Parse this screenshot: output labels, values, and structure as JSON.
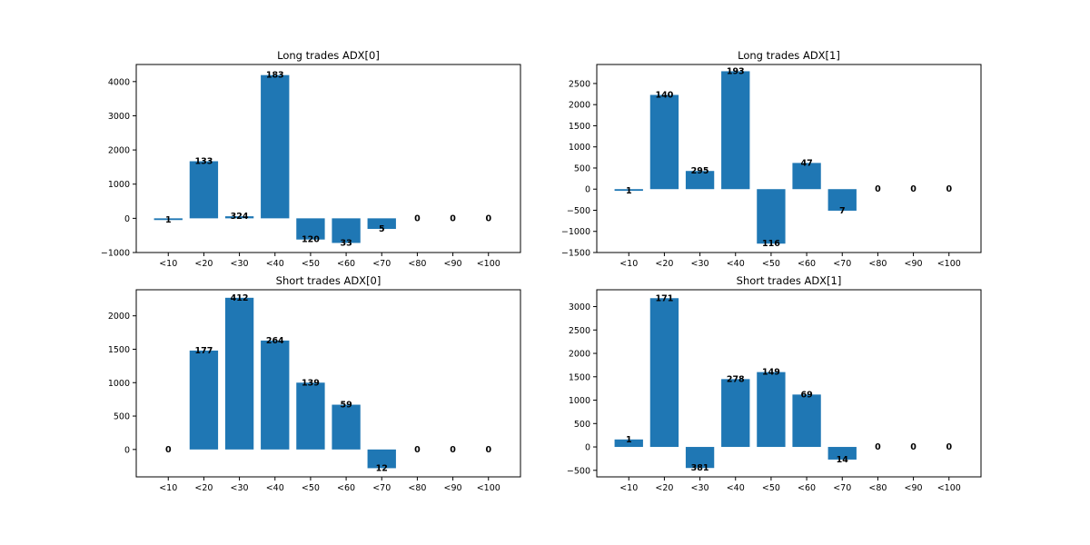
{
  "style": {
    "bar_color": "#1f77b4"
  },
  "chart_data": [
    {
      "type": "bar",
      "title": "Long trades ADX[0]",
      "categories": [
        "<10",
        "<20",
        "<30",
        "<40",
        "<50",
        "<60",
        "<70",
        "<80",
        "<90",
        "<100"
      ],
      "values": [
        -50,
        1670,
        60,
        4190,
        -620,
        -720,
        -310,
        0,
        0,
        0
      ],
      "labels": [
        "1",
        "133",
        "324",
        "183",
        "120",
        "33",
        "5",
        "0",
        "0",
        "0"
      ],
      "ylim": [
        -1000,
        4500
      ],
      "yticks": [
        -1000,
        0,
        1000,
        2000,
        3000,
        4000
      ],
      "ytick_labels": [
        "−1000",
        "0",
        "1000",
        "2000",
        "3000",
        "4000"
      ]
    },
    {
      "type": "bar",
      "title": "Long trades ADX[1]",
      "categories": [
        "<10",
        "<20",
        "<30",
        "<40",
        "<50",
        "<60",
        "<70",
        "<80",
        "<90",
        "<100"
      ],
      "values": [
        -40,
        2230,
        430,
        2790,
        -1290,
        620,
        -510,
        0,
        0,
        0
      ],
      "labels": [
        "1",
        "140",
        "295",
        "193",
        "116",
        "47",
        "7",
        "0",
        "0",
        "0"
      ],
      "ylim": [
        -1500,
        2950
      ],
      "yticks": [
        -1500,
        -1000,
        -500,
        0,
        500,
        1000,
        1500,
        2000,
        2500
      ],
      "ytick_labels": [
        "−1500",
        "−1000",
        "−500",
        "0",
        "500",
        "1000",
        "1500",
        "2000",
        "2500"
      ]
    },
    {
      "type": "bar",
      "title": "Short trades ADX[0]",
      "categories": [
        "<10",
        "<20",
        "<30",
        "<40",
        "<50",
        "<60",
        "<70",
        "<80",
        "<90",
        "<100"
      ],
      "values": [
        0,
        1480,
        2270,
        1630,
        1000,
        670,
        -280,
        0,
        0,
        0
      ],
      "labels": [
        "0",
        "177",
        "412",
        "264",
        "139",
        "59",
        "12",
        "0",
        "0",
        "0"
      ],
      "ylim": [
        -410,
        2390
      ],
      "yticks": [
        0,
        500,
        1000,
        1500,
        2000
      ],
      "ytick_labels": [
        "0",
        "500",
        "1000",
        "1500",
        "2000"
      ]
    },
    {
      "type": "bar",
      "title": "Short trades ADX[1]",
      "categories": [
        "<10",
        "<20",
        "<30",
        "<40",
        "<50",
        "<60",
        "<70",
        "<80",
        "<90",
        "<100"
      ],
      "values": [
        160,
        3180,
        -450,
        1450,
        1600,
        1120,
        -270,
        0,
        0,
        0
      ],
      "labels": [
        "1",
        "171",
        "381",
        "278",
        "149",
        "69",
        "14",
        "0",
        "0",
        "0"
      ],
      "ylim": [
        -640,
        3360
      ],
      "yticks": [
        -500,
        0,
        500,
        1000,
        1500,
        2000,
        2500,
        3000
      ],
      "ytick_labels": [
        "−500",
        "0",
        "500",
        "1000",
        "1500",
        "2000",
        "2500",
        "3000"
      ]
    }
  ]
}
